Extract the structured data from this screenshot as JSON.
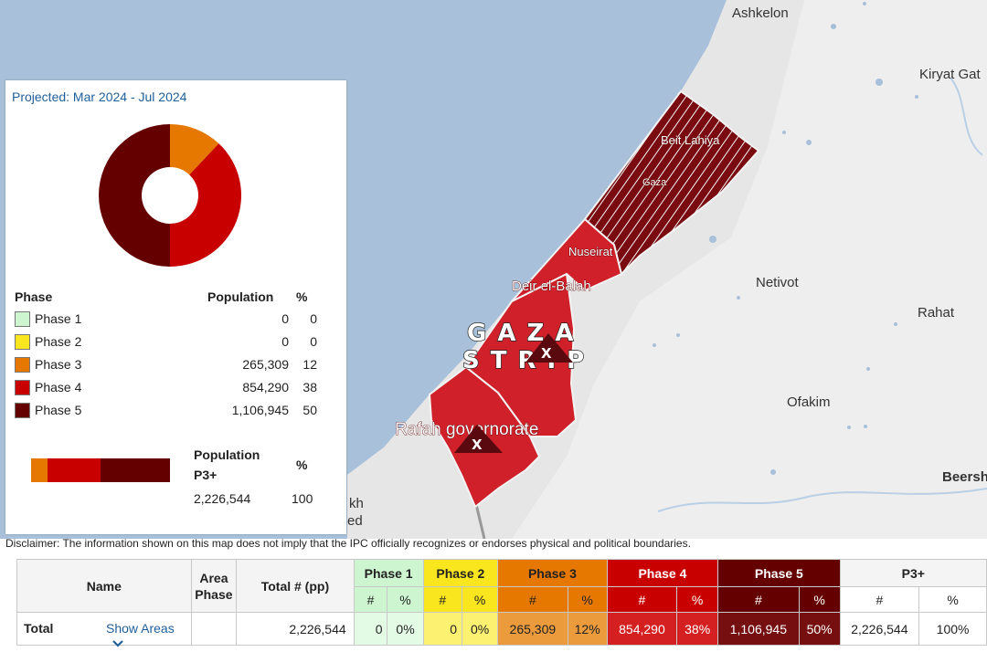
{
  "map": {
    "places": {
      "ashkelon": "Ashkelon",
      "kiryat_gat": "Kiryat Gat",
      "netivot": "Netivot",
      "rahat": "Rahat",
      "ofakim": "Ofakim",
      "beersheba": "Beershel",
      "partial_1": "kh",
      "partial_2": "ed"
    },
    "governorates": {
      "beit_lahiya": "Beit Lahiya",
      "gaza": "Gaza",
      "nuseirat": "Nuseirat",
      "deir_el_balah": "Deir el-Balah",
      "rafah": "Rafah governorate"
    },
    "strip_label_line1": "GAZA",
    "strip_label_line2": "STRIP",
    "marker_symbol": "X",
    "colors": {
      "sea": "#a8c0d9",
      "land": "#eeeeee",
      "phase4": "#d0202a",
      "phase5": "#7a0b10"
    }
  },
  "panel": {
    "title": "Projected: Mar 2024 - Jul 2024",
    "headers": {
      "phase": "Phase",
      "population": "Population",
      "pct": "%"
    },
    "rows": [
      {
        "name": "Phase 1",
        "population": "0",
        "pct": "0",
        "color": "#cdf6d0"
      },
      {
        "name": "Phase 2",
        "population": "0",
        "pct": "0",
        "color": "#fae61e"
      },
      {
        "name": "Phase 3",
        "population": "265,309",
        "pct": "12",
        "color": "#e67800"
      },
      {
        "name": "Phase 4",
        "population": "854,290",
        "pct": "38",
        "color": "#c80000"
      },
      {
        "name": "Phase 5",
        "population": "1,106,945",
        "pct": "50",
        "color": "#640000"
      }
    ],
    "p3": {
      "label_line1": "Population",
      "label_line2": "P3+",
      "pct_header": "%",
      "population": "2,226,544",
      "pct": "100"
    }
  },
  "disclaimer": "Disclaimer: The information shown on this map does not imply that the IPC officially recognizes or endorses physical and political boundaries.",
  "table": {
    "headers": {
      "name": "Name",
      "area_phase_line1": "Area",
      "area_phase_line2": "Phase",
      "total": "Total # (pp)",
      "phase1": "Phase 1",
      "phase2": "Phase 2",
      "phase3": "Phase 3",
      "phase4": "Phase 4",
      "phase5": "Phase 5",
      "p3plus": "P3+",
      "num": "#",
      "pct": "%"
    },
    "row": {
      "name": "Total",
      "show_areas": "Show Areas",
      "area_phase": "",
      "total": "2,226,544",
      "phase1_num": "0",
      "phase1_pct": "0%",
      "phase2_num": "0",
      "phase2_pct": "0%",
      "phase3_num": "265,309",
      "phase3_pct": "12%",
      "phase4_num": "854,290",
      "phase4_pct": "38%",
      "phase5_num": "1,106,945",
      "phase5_pct": "50%",
      "p3_num": "2,226,544",
      "p3_pct": "100%"
    },
    "colors": {
      "phase1_head": "#cdf6d0",
      "phase1_cell": "#e3fbe5",
      "phase2_head": "#fae61e",
      "phase2_cell": "#fdf171",
      "phase3_head": "#e67800",
      "phase3_cell": "#eb9a3c",
      "phase4_head": "#c80000",
      "phase4_cell": "#d42020",
      "phase5_head": "#640000",
      "phase5_cell": "#761010"
    }
  }
}
